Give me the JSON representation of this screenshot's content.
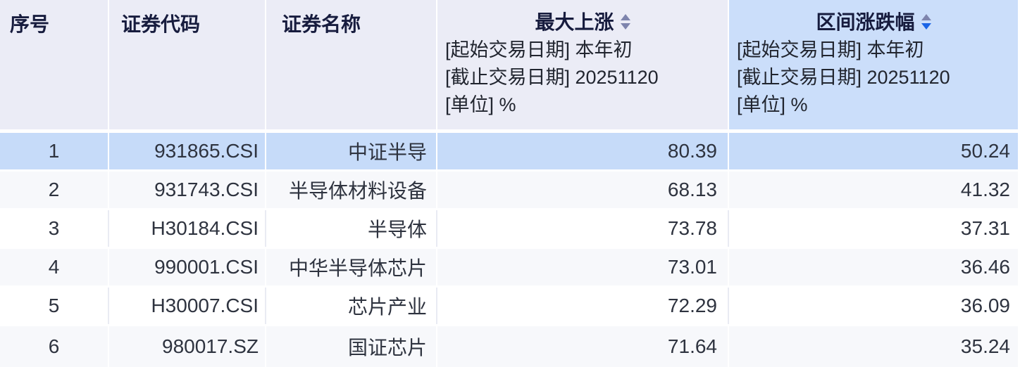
{
  "table": {
    "columns": [
      {
        "key": "seq",
        "label": "序号"
      },
      {
        "key": "code",
        "label": "证券代码"
      },
      {
        "key": "name",
        "label": "证券名称"
      },
      {
        "key": "max_rise",
        "label": "最大上涨",
        "sort_state": "unsorted",
        "sub_lines": [
          "[起始交易日期] 本年初",
          "[截止交易日期] 20251120",
          "[单位] %"
        ]
      },
      {
        "key": "range_change",
        "label": "区间涨跌幅",
        "sort_state": "desc",
        "sub_lines": [
          "[起始交易日期] 本年初",
          "[截止交易日期] 20251120",
          "[单位] %"
        ]
      }
    ],
    "rows": [
      {
        "seq": "1",
        "code": "931865.CSI",
        "name": "中证半导",
        "max_rise": "80.39",
        "range_change": "50.24",
        "selected": true
      },
      {
        "seq": "2",
        "code": "931743.CSI",
        "name": "半导体材料设备",
        "max_rise": "68.13",
        "range_change": "41.32",
        "selected": false
      },
      {
        "seq": "3",
        "code": "H30184.CSI",
        "name": "半导体",
        "max_rise": "73.78",
        "range_change": "37.31",
        "selected": false
      },
      {
        "seq": "4",
        "code": "990001.CSI",
        "name": "中华半导体芯片",
        "max_rise": "73.01",
        "range_change": "36.46",
        "selected": false
      },
      {
        "seq": "5",
        "code": "H30007.CSI",
        "name": "芯片产业",
        "max_rise": "72.29",
        "range_change": "36.09",
        "selected": false
      },
      {
        "seq": "6",
        "code": "980017.SZ",
        "name": "国证芯片",
        "max_rise": "71.64",
        "range_change": "35.24",
        "selected": false
      }
    ]
  },
  "icons": {
    "sort_icon": "up-down-triangles"
  },
  "colors": {
    "header_bg": "#ebecf6",
    "sorted_column_header_bg": "#cbdefa",
    "selected_row_bg": "#c6dbf9",
    "zebra_row_bg": "#f7f8fb",
    "sort_active": "#1a64e6",
    "sort_inactive": "#7e84ad",
    "header_text": "#171c3e",
    "body_text": "#2e333f"
  }
}
